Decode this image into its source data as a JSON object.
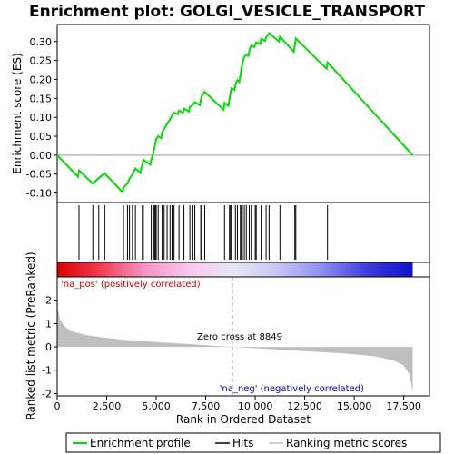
{
  "chart_data": {
    "type": "line",
    "title": "Enrichment plot: GOLGI_VESICLE_TRANSPORT",
    "xlabel": "Rank in Ordered Dataset",
    "ylabel_top": "Enrichment score (ES)",
    "ylabel_bottom": "Ranked list metric (PreRanked)",
    "xlim": [
      0,
      18800
    ],
    "xticks": [
      0,
      2500,
      5000,
      7500,
      10000,
      12500,
      15000,
      17500
    ],
    "xtick_labels": [
      "0",
      "2,500",
      "5,000",
      "7,500",
      "10,000",
      "12,500",
      "15,000",
      "17,500"
    ],
    "es_ylim": [
      -0.125,
      0.345
    ],
    "es_yticks": [
      -0.1,
      -0.05,
      0.0,
      0.05,
      0.1,
      0.15,
      0.2,
      0.25,
      0.3
    ],
    "es_ytick_labels": [
      "-0.10",
      "-0.05",
      "0.00",
      "0.05",
      "0.10",
      "0.15",
      "0.20",
      "0.25",
      "0.30"
    ],
    "metric_ylim": [
      -2.1,
      3.0
    ],
    "metric_yticks": [
      -2,
      -1,
      0,
      1,
      2
    ],
    "metric_ytick_labels": [
      "-2",
      "-1",
      "0",
      "1",
      "2"
    ],
    "zero_cross_rank": 8849,
    "zero_cross_label": "Zero cross at 8849",
    "pos_label": "'na_pos' (positively correlated)",
    "neg_label": "'na_neg' (negatively correlated)",
    "n_genes": 17950,
    "hits": [
      1100,
      1800,
      2100,
      2400,
      3350,
      3550,
      3650,
      3800,
      3950,
      4300,
      4350,
      4750,
      4850,
      4900,
      4950,
      5000,
      5100,
      5300,
      5400,
      5550,
      5700,
      5800,
      5900,
      6150,
      6400,
      6700,
      6850,
      6950,
      7250,
      7300,
      7450,
      8450,
      8700,
      8750,
      8800,
      9000,
      9100,
      9250,
      9300,
      9350,
      9450,
      9550,
      9700,
      9800,
      10000,
      10050,
      10300,
      10550,
      10700,
      11250,
      12000,
      12050,
      13650
    ],
    "es_points": [
      [
        0,
        0.0
      ],
      [
        1050,
        -0.057
      ],
      [
        1100,
        -0.04
      ],
      [
        1800,
        -0.075
      ],
      [
        2100,
        -0.06
      ],
      [
        2400,
        -0.048
      ],
      [
        3300,
        -0.098
      ],
      [
        3350,
        -0.085
      ],
      [
        3550,
        -0.075
      ],
      [
        3650,
        -0.062
      ],
      [
        3800,
        -0.051
      ],
      [
        3950,
        -0.035
      ],
      [
        4200,
        -0.047
      ],
      [
        4300,
        -0.025
      ],
      [
        4350,
        -0.012
      ],
      [
        4700,
        -0.025
      ],
      [
        4750,
        -0.013
      ],
      [
        4850,
        0.005
      ],
      [
        4900,
        0.018
      ],
      [
        4950,
        0.03
      ],
      [
        5000,
        0.042
      ],
      [
        5100,
        0.05
      ],
      [
        5250,
        0.045
      ],
      [
        5300,
        0.06
      ],
      [
        5400,
        0.07
      ],
      [
        5550,
        0.082
      ],
      [
        5700,
        0.095
      ],
      [
        5800,
        0.105
      ],
      [
        5900,
        0.112
      ],
      [
        6100,
        0.108
      ],
      [
        6150,
        0.118
      ],
      [
        6350,
        0.112
      ],
      [
        6400,
        0.123
      ],
      [
        6650,
        0.115
      ],
      [
        6700,
        0.127
      ],
      [
        6850,
        0.133
      ],
      [
        6950,
        0.14
      ],
      [
        7200,
        0.132
      ],
      [
        7250,
        0.145
      ],
      [
        7300,
        0.156
      ],
      [
        7450,
        0.167
      ],
      [
        8400,
        0.12
      ],
      [
        8450,
        0.138
      ],
      [
        8650,
        0.13
      ],
      [
        8700,
        0.148
      ],
      [
        8750,
        0.162
      ],
      [
        8800,
        0.177
      ],
      [
        8950,
        0.172
      ],
      [
        9000,
        0.187
      ],
      [
        9100,
        0.198
      ],
      [
        9200,
        0.193
      ],
      [
        9250,
        0.21
      ],
      [
        9300,
        0.228
      ],
      [
        9350,
        0.242
      ],
      [
        9450,
        0.26
      ],
      [
        9550,
        0.265
      ],
      [
        9650,
        0.262
      ],
      [
        9700,
        0.275
      ],
      [
        9800,
        0.29
      ],
      [
        9950,
        0.285
      ],
      [
        10000,
        0.29
      ],
      [
        10050,
        0.298
      ],
      [
        10250,
        0.293
      ],
      [
        10300,
        0.307
      ],
      [
        10500,
        0.302
      ],
      [
        10550,
        0.312
      ],
      [
        10700,
        0.322
      ],
      [
        11200,
        0.3
      ],
      [
        11250,
        0.313
      ],
      [
        11950,
        0.273
      ],
      [
        12000,
        0.29
      ],
      [
        12050,
        0.308
      ],
      [
        13600,
        0.228
      ],
      [
        13650,
        0.245
      ],
      [
        17950,
        0.0
      ]
    ],
    "metric_curve": [
      [
        0,
        2.9
      ],
      [
        40,
        1.6
      ],
      [
        150,
        1.15
      ],
      [
        400,
        0.85
      ],
      [
        800,
        0.65
      ],
      [
        1500,
        0.5
      ],
      [
        2500,
        0.38
      ],
      [
        4000,
        0.26
      ],
      [
        5500,
        0.18
      ],
      [
        7000,
        0.1
      ],
      [
        8849,
        0.0
      ],
      [
        10500,
        -0.08
      ],
      [
        12500,
        -0.18
      ],
      [
        14500,
        -0.28
      ],
      [
        16000,
        -0.4
      ],
      [
        17000,
        -0.58
      ],
      [
        17500,
        -0.8
      ],
      [
        17800,
        -1.2
      ],
      [
        17950,
        -1.95
      ]
    ],
    "colorbar_stops": [
      "#dd0000",
      "#f23f52",
      "#f895c8",
      "#f8c8ee",
      "#e6e6f6",
      "#c4c4f5",
      "#8a8af0",
      "#3c3ce0",
      "#1010c8"
    ],
    "legend": {
      "enrichment": "Enrichment profile",
      "hits": "Hits",
      "metric": "Ranking metric scores"
    },
    "colors": {
      "enrichment": "#00dd00",
      "hits": "#000000",
      "metric_fill": "#bebebe",
      "pos_text": "#cc0000",
      "neg_text": "#0000cc",
      "zero_line": "#999999"
    }
  }
}
